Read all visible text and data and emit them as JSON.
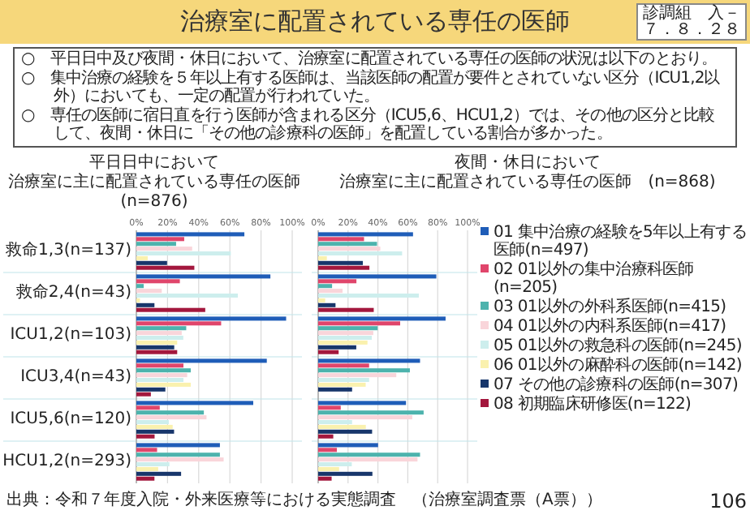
{
  "chart_data": [
    {
      "type": "bar",
      "orientation": "horizontal",
      "title": "平日日中において",
      "subtitle": "治療室に主に配置されている専任の医師(n=876)",
      "annotations": [
        "治療室に配置されている専任の医師",
        "診調組　入－２",
        "７．８．２８",
        "○　平日日中及び夜間・休日において、治療室に配置されている専任の医師の状況は以下のとおり。",
        "○　集中治療の経験を５年以上有する医師は、当該医師の配置が要件とされていない区分（ICU1,2以外）においても、一定の配置が行われていた。",
        "○　専任の医師に宿日直を行う医師が含まれる区分（ICU5,6、HCU1,2）では、その他の区分と比較して、夜間・休日に「その他の診療科の医師」を配置している割合が多かった。",
        "出典：令和７年度入院・外来医療等における実態調査　（治療室調査票（A票））",
        "106"
      ],
      "categories": [
        "救命1,3(n=137)",
        "救命2,4(n=43)",
        "ICU1,2(n=103)",
        "ICU3,4(n=43)",
        "ICU5,6(n=120)",
        "HCU1,2(n=293)"
      ],
      "xlim": [
        0,
        100
      ],
      "xticks": [
        {
          "value": 0,
          "label": "0%"
        },
        {
          "value": 20,
          "label": "20%"
        },
        {
          "value": 40,
          "label": "40%"
        },
        {
          "value": 60,
          "label": "60%"
        },
        {
          "value": 80,
          "label": "80%"
        },
        {
          "value": 100,
          "label": "100%"
        }
      ],
      "grid": "x",
      "series": [
        {
          "color": "#1f5db8",
          "values": [
            69.3,
            86.0,
            96.1,
            83.7,
            75.0,
            53.6
          ]
        },
        {
          "color": "#e0456b",
          "values": [
            30.7,
            27.9,
            54.4,
            30.2,
            15.0,
            13.3
          ]
        },
        {
          "color": "#4db3ad",
          "values": [
            25.5,
            4.7,
            32.0,
            34.9,
            43.3,
            53.6
          ]
        },
        {
          "color": "#f9d5da",
          "values": [
            35.8,
            16.3,
            29.1,
            32.6,
            45.0,
            56.0
          ]
        },
        {
          "color": "#cdeeed",
          "values": [
            60.6,
            65.1,
            30.1,
            30.2,
            20.8,
            21.2
          ]
        },
        {
          "color": "#faf1ae",
          "values": [
            7.3,
            2.3,
            26.2,
            34.9,
            23.3,
            14.0
          ]
        },
        {
          "color": "#17366b",
          "values": [
            19.7,
            11.6,
            24.3,
            18.6,
            24.2,
            28.7
          ]
        },
        {
          "color": "#a3173d",
          "values": [
            37.2,
            44.2,
            26.2,
            9.3,
            11.7,
            11.6
          ]
        }
      ]
    },
    {
      "type": "bar",
      "orientation": "horizontal",
      "title": "夜間・休日において",
      "subtitle": "治療室に主に配置されている専任の医師　(n=868)",
      "categories": [
        null,
        null,
        null,
        null,
        null,
        null
      ],
      "tick_labels": "x",
      "xlim": [
        0,
        100
      ],
      "xticks": [
        {
          "value": 0,
          "label": "0%"
        },
        {
          "value": 20,
          "label": "20%"
        },
        {
          "value": 40,
          "label": "40%"
        },
        {
          "value": 60,
          "label": "60%"
        },
        {
          "value": 80,
          "label": "80%"
        },
        {
          "value": 100,
          "label": "100%"
        }
      ],
      "grid": "x",
      "legend": "right",
      "series": [
        {
          "name": "01 集中治療の経験を5年以上有する医師(n=497)",
          "color": "#1f5db8",
          "values": [
            63.5,
            79.1,
            85.3,
            68.2,
            58.8,
            40.1
          ]
        },
        {
          "name": "02 01以外の集中治療科医師(n=205)",
          "color": "#e0456b",
          "values": [
            30.7,
            25.6,
            54.9,
            34.1,
            15.1,
            12.5
          ]
        },
        {
          "name": "03 01以外の外科系医師(n=415)",
          "color": "#4db3ad",
          "values": [
            39.4,
            9.3,
            39.8,
            61.4,
            70.6,
            68.2
          ]
        },
        {
          "name": "04 01以外の内科系医師(n=417)",
          "color": "#f9d5da",
          "values": [
            41.6,
            16.3,
            36.9,
            52.3,
            63.0,
            66.5
          ]
        },
        {
          "name": "05 01以外の救急科の医師(n=245)",
          "color": "#cdeeed",
          "values": [
            56.2,
            67.4,
            35.9,
            34.1,
            22.7,
            22.5
          ]
        },
        {
          "name": "06 01以外の麻酔科の医師(n=142)",
          "color": "#faf1ae",
          "values": [
            5.8,
            4.7,
            33.0,
            31.8,
            31.9,
            14.0
          ]
        },
        {
          "name": "07 その他の診療科の医師(n=307)",
          "color": "#17366b",
          "values": [
            29.9,
            11.6,
            25.5,
            22.7,
            36.1,
            36.3
          ]
        },
        {
          "name": "08 初期臨床研修医(n=122)",
          "color": "#a3173d",
          "values": [
            34.3,
            37.2,
            13.7,
            0.0,
            10.1,
            9.0
          ]
        }
      ]
    }
  ]
}
